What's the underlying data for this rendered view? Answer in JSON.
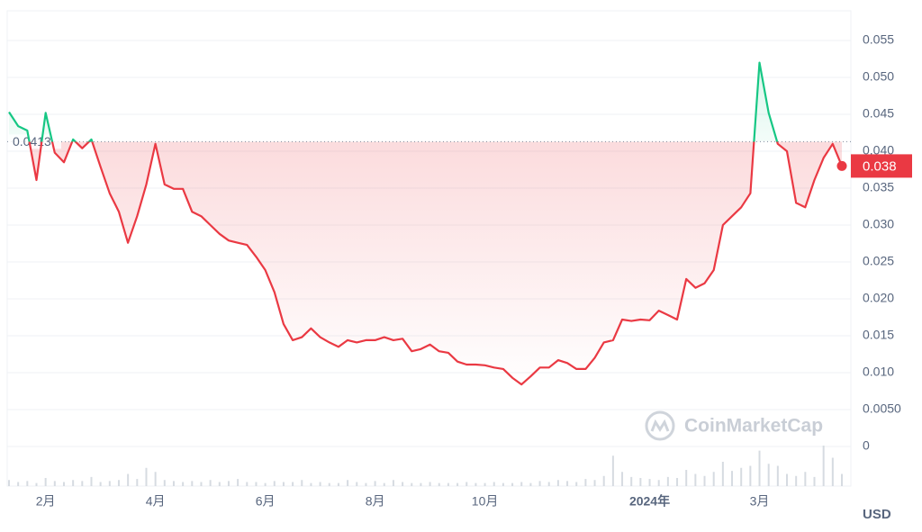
{
  "chart_data": {
    "type": "line",
    "categories": [
      null,
      null,
      null,
      null,
      "2月",
      null,
      null,
      null,
      null,
      null,
      null,
      null,
      null,
      null,
      null,
      null,
      "4月",
      null,
      null,
      null,
      null,
      null,
      null,
      null,
      null,
      null,
      null,
      null,
      "6月",
      null,
      null,
      null,
      null,
      null,
      null,
      null,
      null,
      null,
      null,
      null,
      "8月",
      null,
      null,
      null,
      null,
      null,
      null,
      null,
      null,
      null,
      null,
      null,
      "10月",
      null,
      null,
      null,
      null,
      null,
      null,
      null,
      null,
      null,
      null,
      null,
      null,
      null,
      null,
      null,
      null,
      null,
      "2024年",
      null,
      null,
      null,
      null,
      null,
      null,
      null,
      null,
      null,
      null,
      null,
      "3月",
      null,
      null,
      null,
      null,
      null,
      null,
      null,
      null,
      null
    ],
    "values": [
      0.0453,
      0.0434,
      0.0428,
      0.0361,
      0.0452,
      0.0398,
      0.0385,
      0.0416,
      0.0404,
      0.0416,
      0.0379,
      0.0343,
      0.0318,
      0.0276,
      0.0312,
      0.0355,
      0.041,
      0.0355,
      0.0349,
      0.0349,
      0.0318,
      0.0312,
      0.03,
      0.0288,
      0.0279,
      0.0276,
      0.0273,
      0.0257,
      0.0239,
      0.0209,
      0.0166,
      0.0144,
      0.0148,
      0.016,
      0.0148,
      0.0141,
      0.0135,
      0.0144,
      0.0141,
      0.0144,
      0.0144,
      0.0148,
      0.0144,
      0.0146,
      0.0129,
      0.0132,
      0.0138,
      0.0129,
      0.0127,
      0.0115,
      0.0111,
      0.0111,
      0.011,
      0.0107,
      0.0105,
      0.0093,
      0.0084,
      0.0095,
      0.0107,
      0.0107,
      0.0117,
      0.0113,
      0.0105,
      0.0105,
      0.012,
      0.0141,
      0.0144,
      0.0172,
      0.017,
      0.0172,
      0.0171,
      0.0184,
      0.0178,
      0.0172,
      0.0227,
      0.0215,
      0.0221,
      0.0239,
      0.03,
      0.0312,
      0.0324,
      0.0343,
      0.052,
      0.0452,
      0.041,
      0.04,
      0.033,
      0.0324,
      0.0361,
      0.0391,
      0.041,
      0.038
    ],
    "volume": [
      6,
      4,
      5,
      3,
      8,
      5,
      4,
      6,
      5,
      9,
      4,
      5,
      6,
      12,
      7,
      18,
      14,
      6,
      5,
      4,
      5,
      4,
      6,
      4,
      5,
      7,
      4,
      4,
      3,
      5,
      4,
      4,
      6,
      3,
      4,
      3,
      3,
      6,
      4,
      3,
      5,
      3,
      6,
      4,
      3,
      3,
      4,
      3,
      3,
      3,
      4,
      3,
      3,
      4,
      3,
      3,
      4,
      3,
      5,
      4,
      6,
      5,
      4,
      7,
      6,
      10,
      30,
      14,
      9,
      8,
      7,
      6,
      9,
      8,
      16,
      12,
      10,
      14,
      24,
      15,
      18,
      20,
      35,
      22,
      20,
      12,
      10,
      14,
      9,
      40,
      28,
      12
    ],
    "ylim": [
      0,
      0.055
    ],
    "yticks": [
      0,
      {
        "value": 0.005,
        "label": "0.0050"
      },
      {
        "value": 0.01,
        "label": "0.010"
      },
      0.015,
      {
        "value": 0.02,
        "label": "0.020"
      },
      0.025,
      {
        "value": 0.03,
        "label": "0.030"
      },
      0.035,
      {
        "value": 0.04,
        "label": "0.040"
      },
      0.045,
      {
        "value": 0.05,
        "label": "0.050"
      },
      0.055
    ],
    "grid": true,
    "up_color": "#16c784",
    "down_color": "#ea3943",
    "reference_price": 0.0413,
    "current_price": 0.038,
    "currency": "USD",
    "watermark": "CoinMarketCap"
  }
}
